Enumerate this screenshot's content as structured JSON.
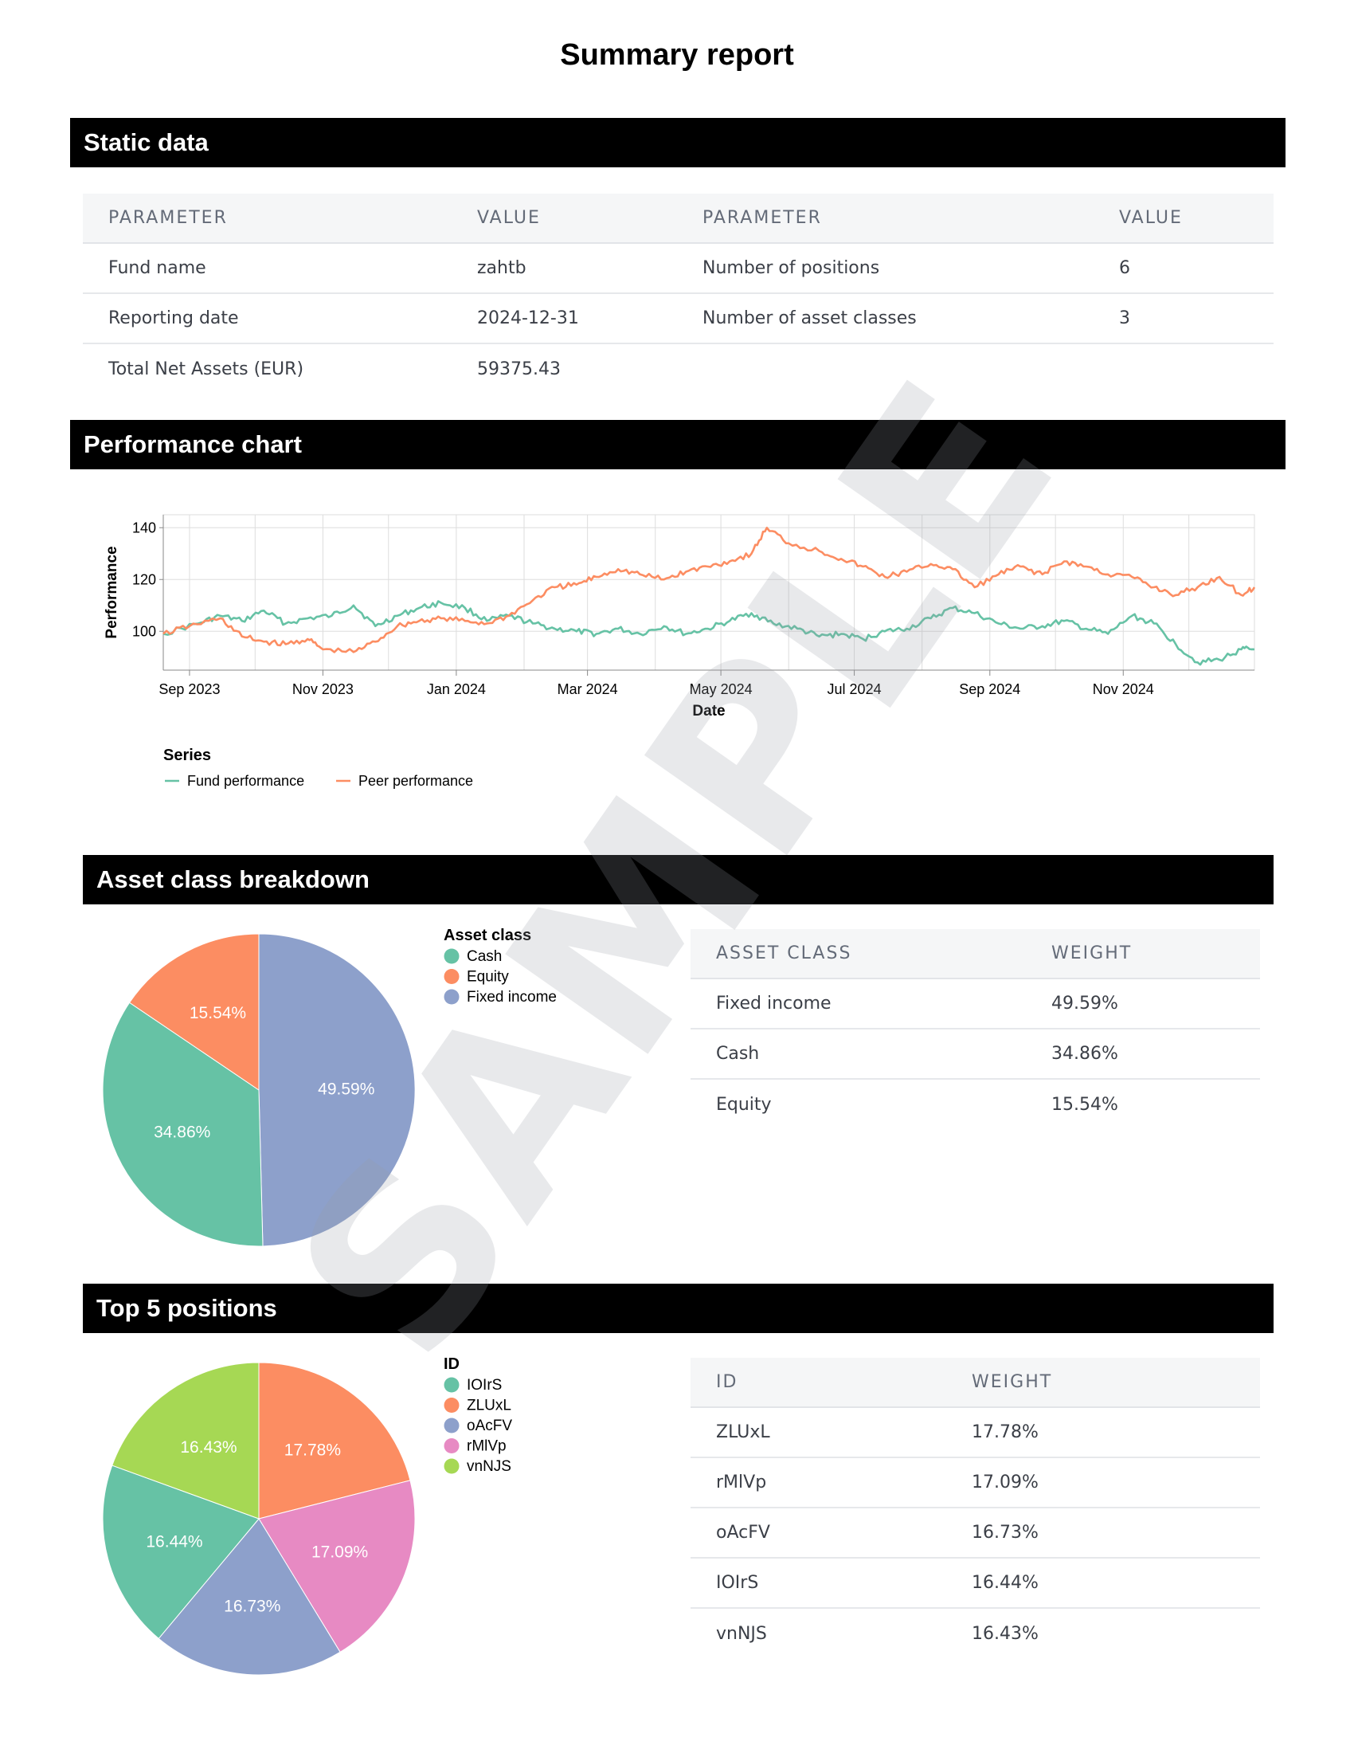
{
  "title": "Summary report",
  "sections": {
    "static": "Static data",
    "performance": "Performance chart",
    "asset_class": "Asset class breakdown",
    "top5": "Top 5 positions"
  },
  "static_table": {
    "headers": [
      "PARAMETER",
      "VALUE",
      "PARAMETER",
      "VALUE"
    ],
    "rows": [
      [
        "Fund name",
        "zahtb",
        "Number of positions",
        "6"
      ],
      [
        "Reporting date",
        "2024-12-31",
        "Number of asset classes",
        "3"
      ],
      [
        "Total Net Assets (EUR)",
        "59375.43",
        "",
        ""
      ]
    ]
  },
  "asset_table": {
    "headers": [
      "ASSET CLASS",
      "WEIGHT"
    ],
    "rows": [
      [
        "Fixed income",
        "49.59%"
      ],
      [
        "Cash",
        "34.86%"
      ],
      [
        "Equity",
        "15.54%"
      ]
    ]
  },
  "positions_table": {
    "headers": [
      "ID",
      "WEIGHT"
    ],
    "rows": [
      [
        "ZLUxL",
        "17.78%"
      ],
      [
        "rMlVp",
        "17.09%"
      ],
      [
        "oAcFV",
        "16.73%"
      ],
      [
        "IOIrS",
        "16.44%"
      ],
      [
        "vnNJS",
        "16.43%"
      ]
    ]
  },
  "watermark": "SAMPLE",
  "chart_data": [
    {
      "type": "line",
      "xlabel": "Date",
      "ylabel": "Performance",
      "x_range": [
        "2023-08-20",
        "2024-12-31"
      ],
      "ylim": [
        85,
        145
      ],
      "yticks": [
        100,
        120,
        140
      ],
      "xticks": [
        {
          "date": "2023-09-01",
          "label": "Sep 2023"
        },
        {
          "date": "2023-11-01",
          "label": "Nov 2023"
        },
        {
          "date": "2024-01-01",
          "label": "Jan 2024"
        },
        {
          "date": "2024-03-01",
          "label": "Mar 2024"
        },
        {
          "date": "2024-05-01",
          "label": "May 2024"
        },
        {
          "date": "2024-07-01",
          "label": "Jul 2024"
        },
        {
          "date": "2024-09-01",
          "label": "Sep 2024"
        },
        {
          "date": "2024-11-01",
          "label": "Nov 2024"
        }
      ],
      "grid": true,
      "legend_title": "Series",
      "legend_position": "bottom-left",
      "series": [
        {
          "name": "Fund performance",
          "color": "#66c2a5",
          "points": [
            [
              "2023-08-20",
              99
            ],
            [
              "2023-09-05",
              103
            ],
            [
              "2023-09-15",
              106
            ],
            [
              "2023-09-25",
              104
            ],
            [
              "2023-10-05",
              108
            ],
            [
              "2023-10-15",
              103
            ],
            [
              "2023-10-25",
              105
            ],
            [
              "2023-11-05",
              106
            ],
            [
              "2023-11-15",
              110
            ],
            [
              "2023-11-25",
              102
            ],
            [
              "2023-12-05",
              106
            ],
            [
              "2023-12-15",
              109
            ],
            [
              "2023-12-25",
              111
            ],
            [
              "2024-01-05",
              109
            ],
            [
              "2024-01-15",
              104
            ],
            [
              "2024-01-25",
              106
            ],
            [
              "2024-02-05",
              103
            ],
            [
              "2024-02-15",
              101
            ],
            [
              "2024-02-25",
              100
            ],
            [
              "2024-03-05",
              99
            ],
            [
              "2024-03-15",
              101
            ],
            [
              "2024-03-25",
              99
            ],
            [
              "2024-04-05",
              102
            ],
            [
              "2024-04-15",
              99
            ],
            [
              "2024-04-25",
              101
            ],
            [
              "2024-05-05",
              104
            ],
            [
              "2024-05-15",
              107
            ],
            [
              "2024-05-25",
              103
            ],
            [
              "2024-06-05",
              101
            ],
            [
              "2024-06-15",
              98
            ],
            [
              "2024-06-25",
              99
            ],
            [
              "2024-07-05",
              97
            ],
            [
              "2024-07-15",
              100
            ],
            [
              "2024-07-25",
              101
            ],
            [
              "2024-08-05",
              105
            ],
            [
              "2024-08-15",
              109
            ],
            [
              "2024-08-25",
              107
            ],
            [
              "2024-09-05",
              103
            ],
            [
              "2024-09-15",
              101
            ],
            [
              "2024-09-25",
              102
            ],
            [
              "2024-10-05",
              104
            ],
            [
              "2024-10-15",
              101
            ],
            [
              "2024-10-25",
              99
            ],
            [
              "2024-11-05",
              106
            ],
            [
              "2024-11-15",
              103
            ],
            [
              "2024-11-25",
              95
            ],
            [
              "2024-12-05",
              88
            ],
            [
              "2024-12-15",
              89
            ],
            [
              "2024-12-25",
              93
            ],
            [
              "2024-12-31",
              93
            ]
          ]
        },
        {
          "name": "Peer performance",
          "color": "#fc8d62",
          "points": [
            [
              "2023-08-20",
              99
            ],
            [
              "2023-09-01",
              102
            ],
            [
              "2023-09-15",
              105
            ],
            [
              "2023-09-25",
              98
            ],
            [
              "2023-10-05",
              96
            ],
            [
              "2023-10-15",
              95
            ],
            [
              "2023-10-25",
              97
            ],
            [
              "2023-11-01",
              93
            ],
            [
              "2023-11-15",
              92
            ],
            [
              "2023-11-25",
              96
            ],
            [
              "2023-12-05",
              102
            ],
            [
              "2023-12-15",
              104
            ],
            [
              "2023-12-25",
              105
            ],
            [
              "2024-01-05",
              104
            ],
            [
              "2024-01-15",
              103
            ],
            [
              "2024-01-25",
              106
            ],
            [
              "2024-02-05",
              112
            ],
            [
              "2024-02-15",
              117
            ],
            [
              "2024-02-25",
              118
            ],
            [
              "2024-03-05",
              121
            ],
            [
              "2024-03-15",
              124
            ],
            [
              "2024-03-25",
              122
            ],
            [
              "2024-04-05",
              120
            ],
            [
              "2024-04-15",
              123
            ],
            [
              "2024-04-25",
              125
            ],
            [
              "2024-05-05",
              127
            ],
            [
              "2024-05-15",
              130
            ],
            [
              "2024-05-22",
              140
            ],
            [
              "2024-06-01",
              134
            ],
            [
              "2024-06-15",
              131
            ],
            [
              "2024-06-25",
              128
            ],
            [
              "2024-07-05",
              125
            ],
            [
              "2024-07-15",
              121
            ],
            [
              "2024-07-25",
              123
            ],
            [
              "2024-08-05",
              126
            ],
            [
              "2024-08-15",
              124
            ],
            [
              "2024-08-25",
              117
            ],
            [
              "2024-09-05",
              122
            ],
            [
              "2024-09-15",
              125
            ],
            [
              "2024-09-25",
              122
            ],
            [
              "2024-10-05",
              127
            ],
            [
              "2024-10-15",
              125
            ],
            [
              "2024-10-25",
              122
            ],
            [
              "2024-11-05",
              121
            ],
            [
              "2024-11-15",
              117
            ],
            [
              "2024-11-25",
              114
            ],
            [
              "2024-12-05",
              117
            ],
            [
              "2024-12-15",
              121
            ],
            [
              "2024-12-25",
              114
            ],
            [
              "2024-12-31",
              117
            ]
          ]
        }
      ]
    },
    {
      "type": "pie",
      "legend_title": "Asset class",
      "legend_position": "top-right",
      "slices": [
        {
          "label": "Fixed income",
          "value": 49.59,
          "text": "49.59%",
          "color": "#8da0cb"
        },
        {
          "label": "Cash",
          "value": 34.86,
          "text": "34.86%",
          "color": "#66c2a5"
        },
        {
          "label": "Equity",
          "value": 15.54,
          "text": "15.54%",
          "color": "#fc8d62"
        }
      ],
      "legend": [
        {
          "label": "Cash",
          "color": "#66c2a5"
        },
        {
          "label": "Equity",
          "color": "#fc8d62"
        },
        {
          "label": "Fixed income",
          "color": "#8da0cb"
        }
      ]
    },
    {
      "type": "pie",
      "legend_title": "ID",
      "legend_position": "top-right",
      "slices": [
        {
          "label": "ZLUxL",
          "value": 17.78,
          "text": "17.78%",
          "color": "#fc8d62"
        },
        {
          "label": "rMlVp",
          "value": 17.09,
          "text": "17.09%",
          "color": "#e78ac3"
        },
        {
          "label": "oAcFV",
          "value": 16.73,
          "text": "16.73%",
          "color": "#8da0cb"
        },
        {
          "label": "IOIrS",
          "value": 16.44,
          "text": "16.44%",
          "color": "#66c2a5"
        },
        {
          "label": "vnNJS",
          "value": 16.43,
          "text": "16.43%",
          "color": "#a6d854"
        }
      ],
      "legend": [
        {
          "label": "IOIrS",
          "color": "#66c2a5"
        },
        {
          "label": "ZLUxL",
          "color": "#fc8d62"
        },
        {
          "label": "oAcFV",
          "color": "#8da0cb"
        },
        {
          "label": "rMlVp",
          "color": "#e78ac3"
        },
        {
          "label": "vnNJS",
          "color": "#a6d854"
        }
      ]
    }
  ]
}
